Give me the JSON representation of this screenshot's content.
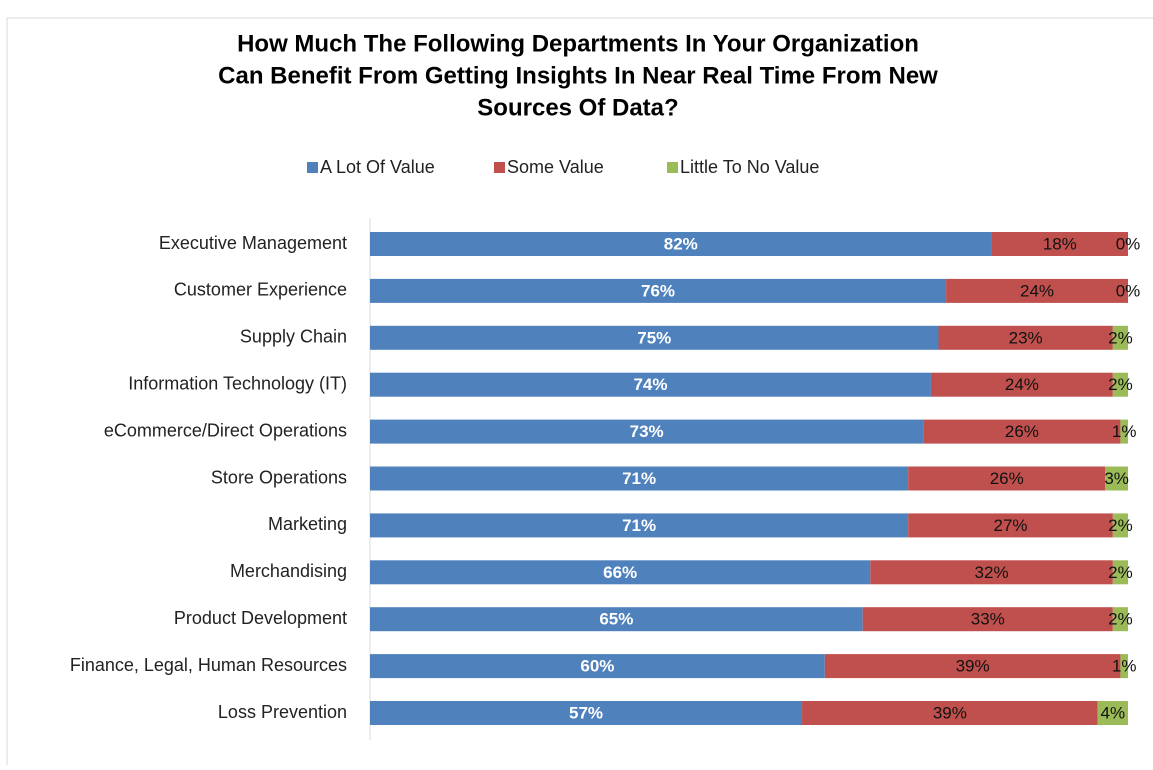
{
  "chart_data": {
    "type": "stacked-bar-horizontal",
    "title": [
      "How Much The Following Departments In Your Organization",
      "Can Benefit From Getting Insights In Near Real Time From New",
      "Sources Of Data?"
    ],
    "categories": [
      "Executive Management",
      "Customer Experience",
      "Supply Chain",
      "Information Technology (IT)",
      "eCommerce/Direct Operations",
      "Store Operations",
      "Marketing",
      "Merchandising",
      "Product Development",
      "Finance, Legal, Human Resources",
      "Loss Prevention"
    ],
    "series": [
      {
        "name": "A Lot Of Value",
        "color": "#4f81bd",
        "values": [
          82,
          76,
          75,
          74,
          73,
          71,
          71,
          66,
          65,
          60,
          57
        ],
        "value_labels": [
          "82%",
          "76%",
          "75%",
          "74%",
          "73%",
          "71%",
          "71%",
          "66%",
          "65%",
          "60%",
          "57%"
        ]
      },
      {
        "name": "Some Value",
        "color": "#c0504d",
        "values": [
          18,
          24,
          23,
          24,
          26,
          26,
          27,
          32,
          33,
          39,
          39
        ],
        "value_labels": [
          "18%",
          "24%",
          "23%",
          "24%",
          "26%",
          "26%",
          "27%",
          "32%",
          "33%",
          "39%",
          "39%"
        ]
      },
      {
        "name": "Little To No Value",
        "color": "#9bbb59",
        "values": [
          0,
          0,
          2,
          2,
          1,
          3,
          2,
          2,
          2,
          1,
          4
        ],
        "value_labels": [
          "0%",
          "0%",
          "2%",
          "2%",
          "1%",
          "3%",
          "2%",
          "2%",
          "2%",
          "1%",
          "4%"
        ]
      }
    ],
    "xlim": [
      0,
      100
    ]
  }
}
